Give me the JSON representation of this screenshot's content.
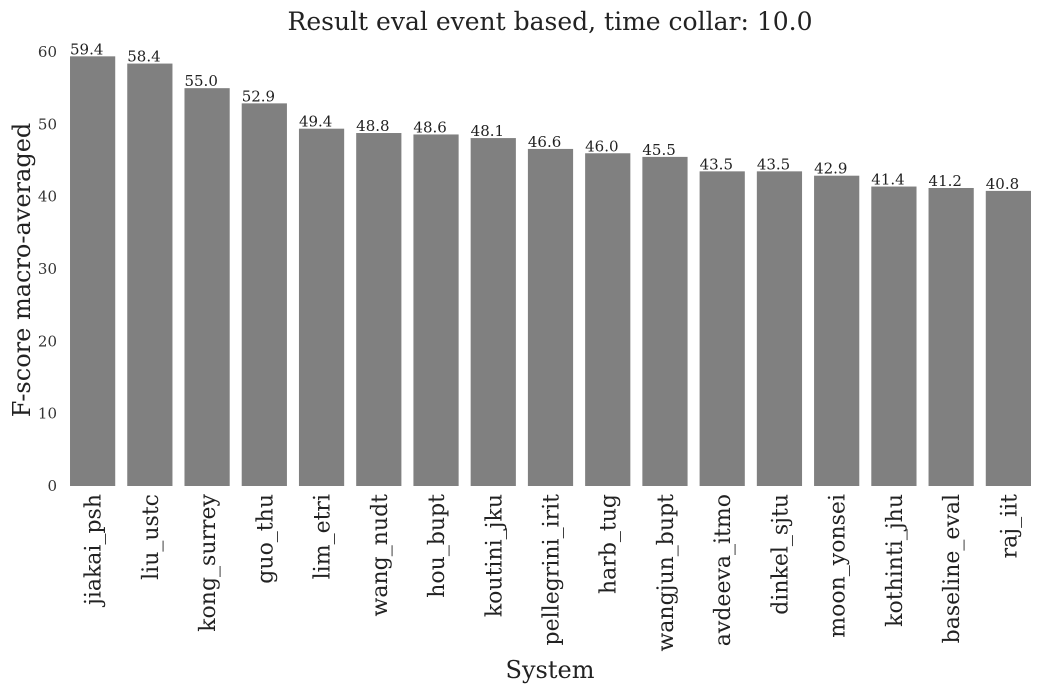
{
  "chart_data": {
    "type": "bar",
    "title": "Result eval event based, time collar: 10.0",
    "xlabel": "System",
    "ylabel": "F-score macro-averaged",
    "ylim": [
      0,
      60
    ],
    "yticks": [
      0,
      10,
      20,
      30,
      40,
      50,
      60
    ],
    "grid": false,
    "bar_color": "#808080",
    "categories": [
      "jiakai_psh",
      "liu_ustc",
      "kong_surrey",
      "guo_thu",
      "lim_etri",
      "wang_nudt",
      "hou_bupt",
      "koutini_jku",
      "pellegrini_irit",
      "harb_tug",
      "wangjun_bupt",
      "avdeeva_itmo",
      "dinkel_sjtu",
      "moon_yonsei",
      "kothinti_jhu",
      "baseline_eval",
      "raj_iit"
    ],
    "values": [
      59.4,
      58.4,
      55.0,
      52.9,
      49.4,
      48.8,
      48.6,
      48.1,
      46.6,
      46.0,
      45.5,
      43.5,
      43.5,
      42.9,
      41.4,
      41.2,
      40.8
    ],
    "data_labels": [
      "59.4",
      "58.4",
      "55.0",
      "52.9",
      "49.4",
      "48.8",
      "48.6",
      "48.1",
      "46.6",
      "46.0",
      "45.5",
      "43.5",
      "43.5",
      "42.9",
      "41.4",
      "41.2",
      "40.8"
    ]
  }
}
